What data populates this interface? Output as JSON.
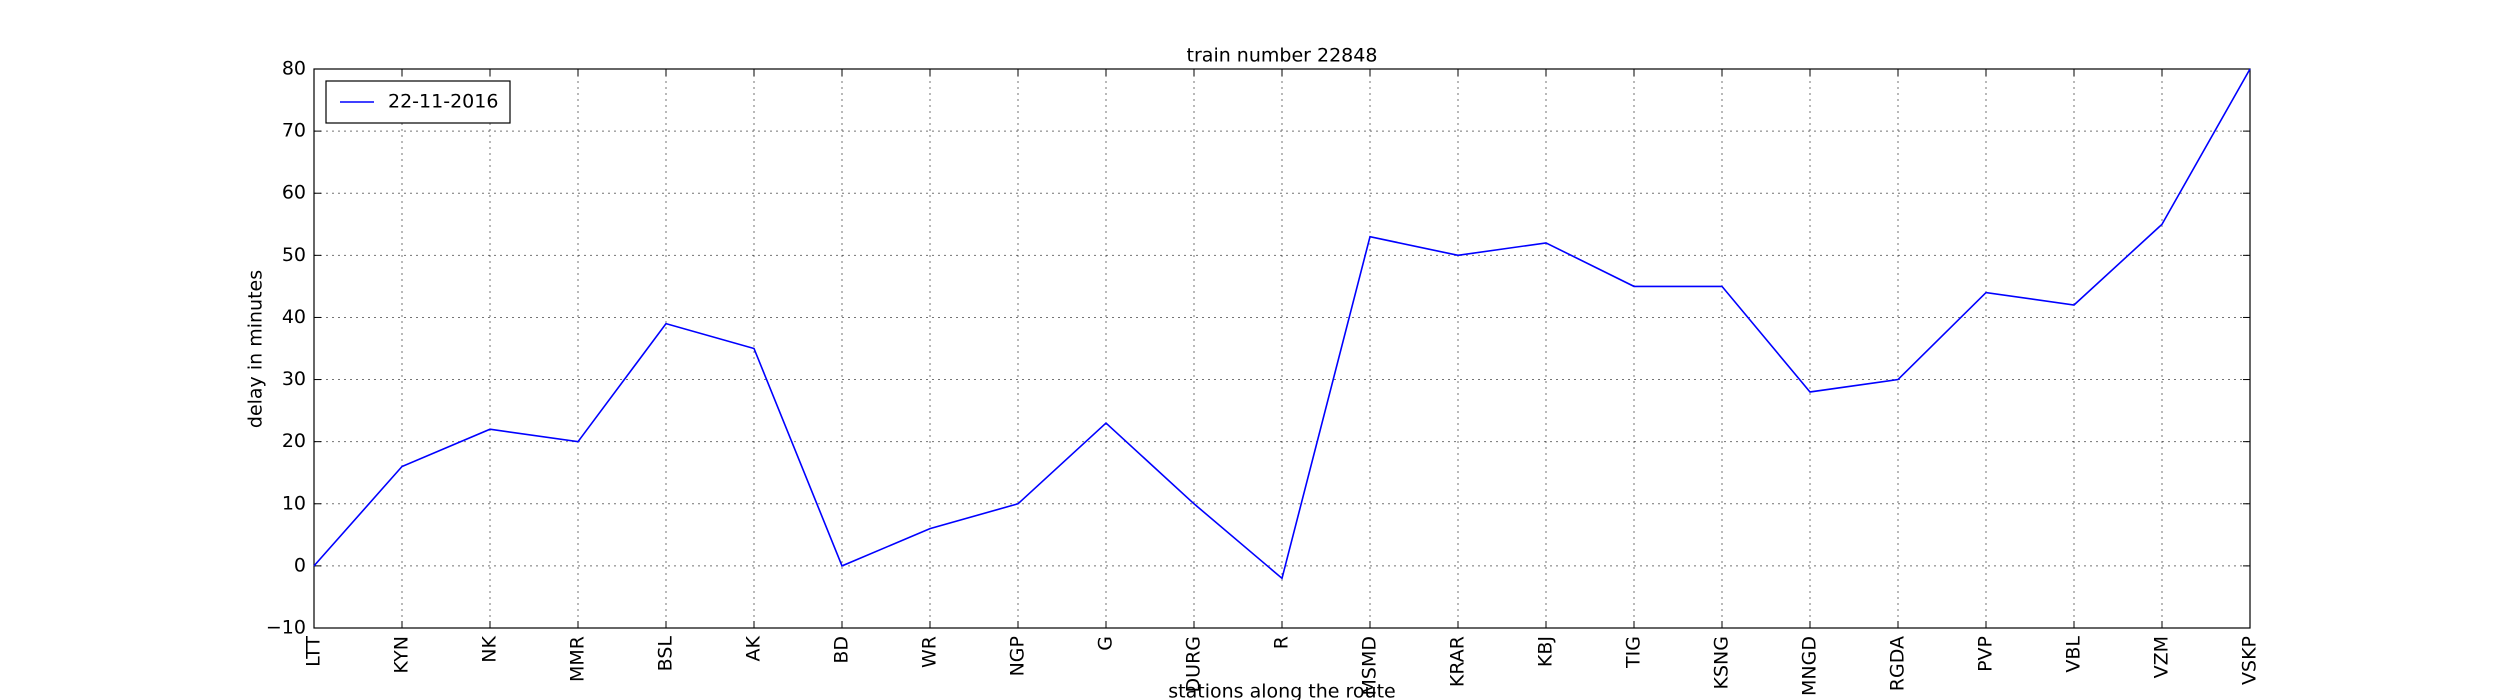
{
  "chart_data": {
    "type": "line",
    "title": "train number 22848",
    "x_label": "stations along the route",
    "y_label": "delay in minutes",
    "categories": [
      "LTT",
      "KYN",
      "NK",
      "MMR",
      "BSL",
      "AK",
      "BD",
      "WR",
      "NGP",
      "G",
      "DURG",
      "R",
      "MSMD",
      "KRAR",
      "KBJ",
      "TIG",
      "KSNG",
      "MNGD",
      "RGDA",
      "PVP",
      "VBL",
      "VZM",
      "VSKP"
    ],
    "series": [
      {
        "name": "22-11-2016",
        "color": "#0000ff",
        "values": [
          0,
          16,
          22,
          20,
          39,
          35,
          0,
          6,
          10,
          23,
          10,
          -2,
          53,
          50,
          52,
          45,
          45,
          28,
          30,
          44,
          42,
          55,
          80
        ]
      }
    ],
    "ylim": [
      -10,
      80
    ],
    "yticks": [
      {
        "value": -10,
        "label": "−10"
      },
      0,
      10,
      20,
      30,
      40,
      50,
      60,
      70,
      80
    ],
    "grid": true,
    "legend": "upper-left"
  }
}
